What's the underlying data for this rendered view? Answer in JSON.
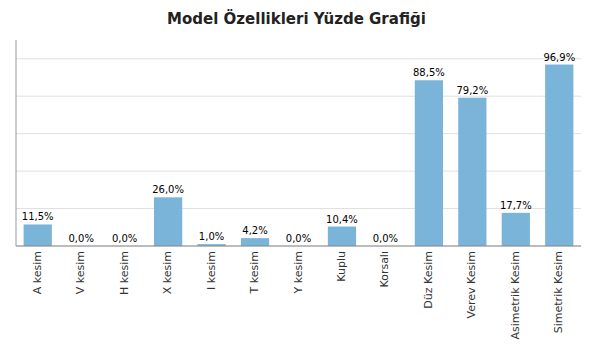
{
  "chart_data": {
    "type": "bar",
    "title": "Model Özellikleri Yüzde Grafiği",
    "categories": [
      "A kesim",
      "V kesim",
      "H kesim",
      "X kesim",
      "I kesim",
      "T kesim",
      "Y kesim",
      "Kuplu",
      "Korsalı",
      "Düz Kesim",
      "Verev Kesim",
      "Asimetrik Kesim",
      "Simetrik Kesim"
    ],
    "values": [
      11.5,
      0.0,
      0.0,
      26.0,
      1.0,
      4.2,
      0.0,
      10.4,
      0.0,
      88.5,
      79.2,
      17.7,
      96.9
    ],
    "value_labels": [
      "11,5%",
      "0,0%",
      "0,0%",
      "26,0%",
      "1,0%",
      "4,2%",
      "0,0%",
      "10,4%",
      "0,0%",
      "88,5%",
      "79,2%",
      "17,7%",
      "96,9%"
    ],
    "data_labels": true,
    "color": "#7ab4d8",
    "ylim": [
      0,
      110
    ],
    "yticks": [
      0,
      20,
      40,
      60,
      80,
      100
    ],
    "grid": true,
    "tick_labels": "x"
  }
}
